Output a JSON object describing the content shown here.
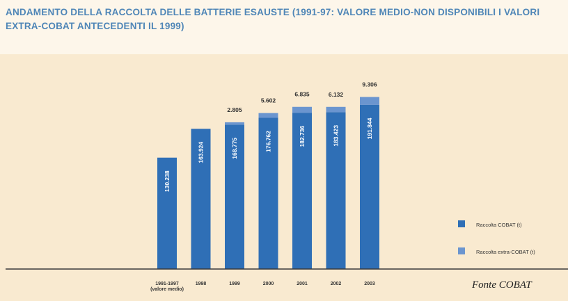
{
  "chart_data": {
    "type": "bar",
    "stacked": true,
    "title": "ANDAMENTO DELLA RACCOLTA DELLE BATTERIE ESAUSTE (1991-97: VALORE MEDIO-NON DISPONIBILI I VALORI EXTRA-COBAT ANTECEDENTI IL 1999)",
    "categories": [
      [
        "1991-1997",
        "(valore medio)"
      ],
      [
        "1998"
      ],
      [
        "1999"
      ],
      [
        "2000"
      ],
      [
        "2001"
      ],
      [
        "2002"
      ],
      [
        "2003"
      ]
    ],
    "series": [
      {
        "name": "Raccolta COBAT (t)",
        "color": "#2f6fb6",
        "values": [
          130238,
          163924,
          168775,
          176762,
          182736,
          183423,
          191844
        ],
        "labels": [
          "130.238",
          "163.924",
          "168.775",
          "176.762",
          "182.736",
          "183.423",
          "191.844"
        ]
      },
      {
        "name": "Raccolta extra-COBAT (t)",
        "color": "#6b95cf",
        "values": [
          0,
          0,
          2805,
          5602,
          6835,
          6132,
          9306
        ],
        "labels": [
          "",
          "",
          "2.805",
          "5.602",
          "6.835",
          "6.132",
          "9.306"
        ]
      }
    ],
    "ylim": [
      0,
      230000
    ],
    "grid": false,
    "legend": "bottom-right"
  },
  "source": "Fonte COBAT"
}
